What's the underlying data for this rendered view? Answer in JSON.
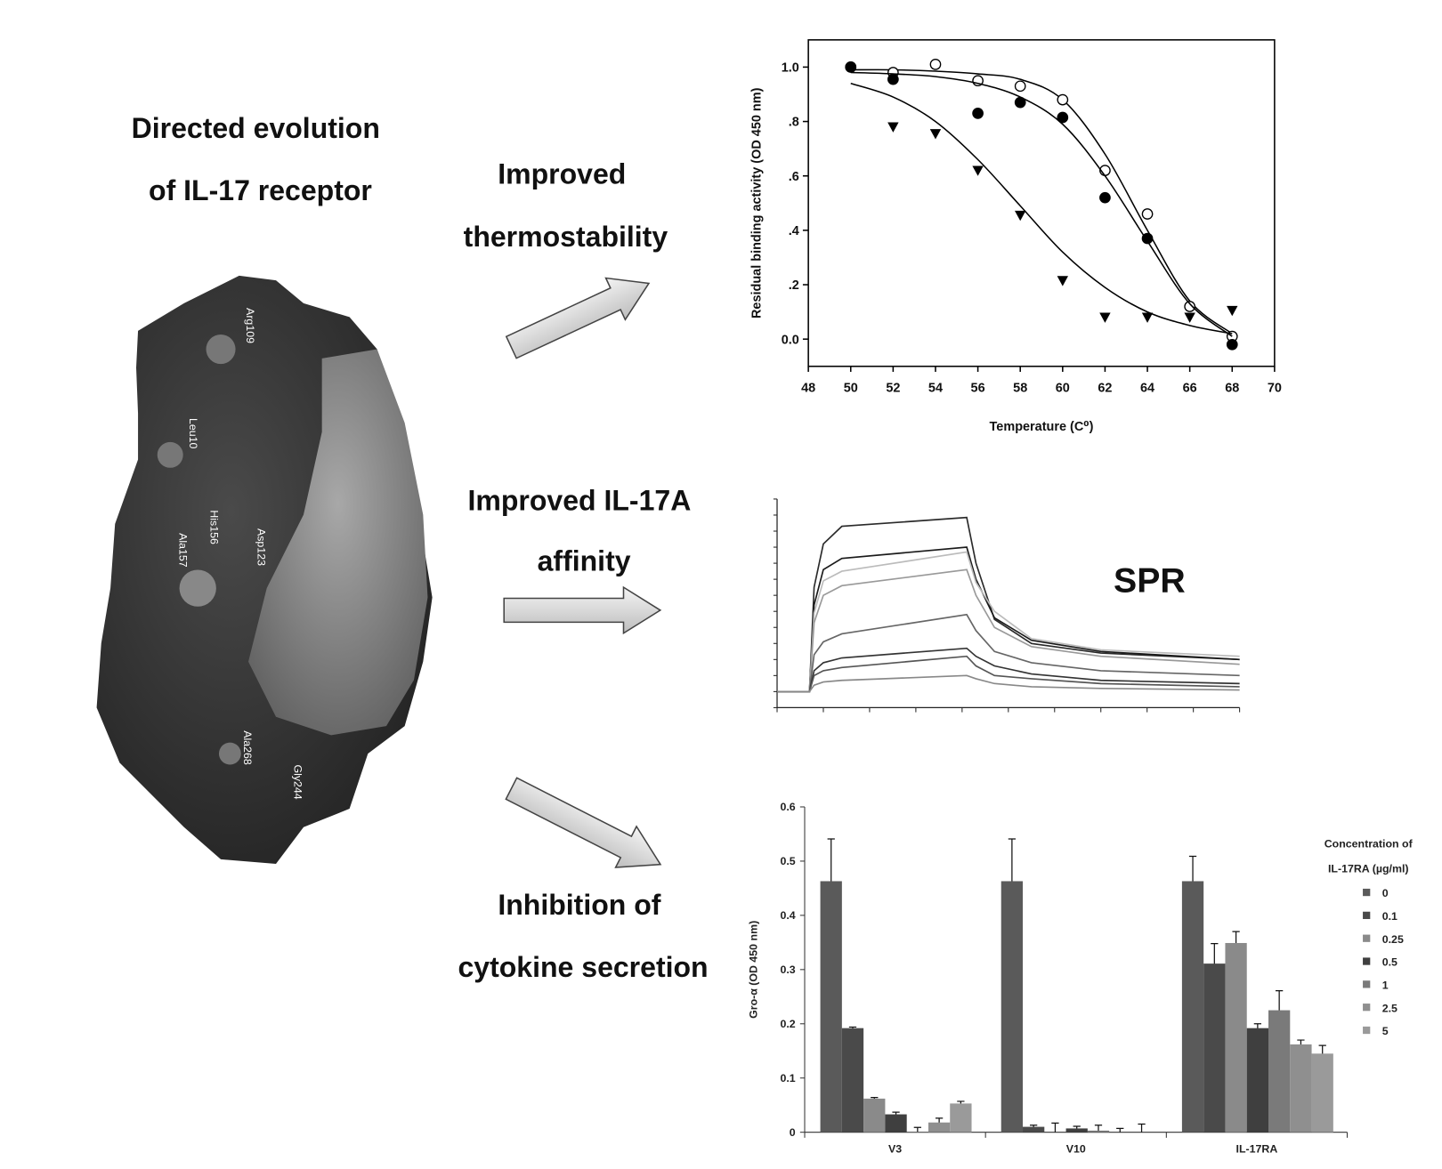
{
  "header": {
    "title_lines": [
      "Directed evolution",
      "of IL-17 receptor"
    ]
  },
  "structure": {
    "residues": [
      "Arg109",
      "Leu10",
      "His156",
      "Asp123",
      "Ala157",
      "Ala268",
      "Gly244"
    ]
  },
  "captions": [
    [
      "Improved",
      "thermostability"
    ],
    [
      "Improved IL-17A",
      "affinity"
    ],
    [
      "Inhibition of",
      "cytokine secretion"
    ]
  ],
  "chart_data": [
    {
      "type": "scatter",
      "xlabel": "Temperature (C⁰)",
      "ylabel": "Residual binding activity (OD 450 nm)",
      "x": [
        50,
        52,
        54,
        56,
        58,
        60,
        62,
        64,
        66,
        68
      ],
      "xlim": [
        48,
        70
      ],
      "xticks": [
        48,
        50,
        52,
        54,
        56,
        58,
        60,
        62,
        64,
        66,
        68,
        70
      ],
      "ylim": [
        -0.1,
        1.1
      ],
      "yticks": [
        {
          "value": 0,
          "label": "0.0"
        },
        {
          "value": 0.2,
          "label": ".2"
        },
        {
          "value": 0.4,
          "label": ".4"
        },
        {
          "value": 0.6,
          "label": ".6"
        },
        {
          "value": 0.8,
          "label": ".8"
        },
        {
          "value": 1,
          "label": "1.0"
        }
      ],
      "series": [
        {
          "marker": "open-circle",
          "color": "#000000",
          "values": [
            1.0,
            0.98,
            1.01,
            0.95,
            0.93,
            0.88,
            0.62,
            0.46,
            0.12,
            0.01
          ],
          "fit": [
            0.99,
            0.99,
            0.985,
            0.975,
            0.955,
            0.88,
            0.68,
            0.4,
            0.14,
            0.02
          ]
        },
        {
          "marker": "filled-circle",
          "color": "#000000",
          "values": [
            1.0,
            0.955,
            null,
            0.83,
            0.87,
            0.815,
            0.52,
            0.37,
            null,
            -0.02
          ],
          "fit": [
            0.98,
            0.975,
            0.965,
            0.94,
            0.89,
            0.79,
            0.6,
            0.36,
            0.13,
            0.01
          ]
        },
        {
          "marker": "triangle-down",
          "color": "#000000",
          "values": [
            null,
            0.78,
            0.755,
            0.62,
            0.455,
            0.215,
            0.08,
            0.08,
            0.08,
            0.105
          ],
          "fit": [
            0.94,
            0.89,
            0.8,
            0.66,
            0.49,
            0.32,
            0.19,
            0.1,
            0.05,
            0.02
          ]
        }
      ]
    },
    {
      "type": "line",
      "title": "SPR",
      "x": [
        0,
        7,
        8,
        10,
        14,
        41,
        43,
        47,
        55,
        70,
        100
      ],
      "xlim": [
        0,
        100
      ],
      "xticks": [
        0,
        10,
        20,
        30,
        40,
        50,
        60,
        70,
        80,
        90,
        100
      ],
      "ylim": [
        -1,
        12
      ],
      "yticks": [
        -1,
        0,
        1,
        2,
        3,
        4,
        5,
        6,
        7,
        8,
        9,
        10,
        11,
        12
      ],
      "series": [
        {
          "color": "#2a2a2a",
          "values": [
            0,
            0,
            6.5,
            9.2,
            10.3,
            10.85,
            8,
            4.5,
            3,
            2.4,
            2.0
          ]
        },
        {
          "color": "#1a1a1a",
          "values": [
            0,
            0,
            5.4,
            7.6,
            8.3,
            9.0,
            7,
            4.6,
            3.2,
            2.5,
            2.0
          ]
        },
        {
          "color": "#bbbbbb",
          "values": [
            0,
            0,
            4.9,
            6.9,
            7.5,
            8.7,
            6.8,
            5,
            3.3,
            2.6,
            2.2
          ]
        },
        {
          "color": "#999999",
          "values": [
            0,
            0,
            4.3,
            6,
            6.6,
            7.6,
            6,
            4,
            2.8,
            2.2,
            1.7
          ]
        },
        {
          "color": "#666666",
          "values": [
            0,
            0,
            2.3,
            3.1,
            3.6,
            4.8,
            3.8,
            2.5,
            1.8,
            1.3,
            1.0
          ]
        },
        {
          "color": "#333333",
          "values": [
            0,
            0,
            1.3,
            1.8,
            2.1,
            2.7,
            2.2,
            1.6,
            1.1,
            0.7,
            0.5
          ]
        },
        {
          "color": "#555555",
          "values": [
            0,
            0,
            1,
            1.3,
            1.5,
            2.2,
            1.6,
            1.0,
            0.8,
            0.5,
            0.3
          ]
        },
        {
          "color": "#888888",
          "values": [
            0,
            0,
            0.4,
            0.6,
            0.7,
            1.0,
            0.8,
            0.5,
            0.3,
            0.2,
            0.1
          ]
        }
      ]
    },
    {
      "type": "bar",
      "ylabel": "Gro-α (OD 450 nm)",
      "legend_title": [
        "Concentration of",
        "IL-17RA (µg/ml)"
      ],
      "categories": [
        "V3",
        "V10",
        "IL-17RA"
      ],
      "ylim": [
        0,
        0.6
      ],
      "yticks": [
        0,
        0.1,
        0.2,
        0.3,
        0.4,
        0.5,
        0.6
      ],
      "series": [
        {
          "name": "0",
          "color": "#5a5a5a",
          "values": [
            0.463,
            0.463,
            0.463
          ],
          "errors": [
            0.078,
            0.078,
            0.046
          ]
        },
        {
          "name": "0.1",
          "color": "#4a4a4a",
          "values": [
            0.192,
            0.01,
            0.311
          ],
          "errors": [
            0.002,
            0.003,
            0.037
          ]
        },
        {
          "name": "0.25",
          "color": "#8a8a8a",
          "values": [
            0.062,
            0.0,
            0.349
          ],
          "errors": [
            0.002,
            0.017,
            0.021
          ]
        },
        {
          "name": "0.5",
          "color": "#3f3f3f",
          "values": [
            0.033,
            0.007,
            0.192
          ],
          "errors": [
            0.004,
            0.004,
            0.008
          ]
        },
        {
          "name": "1",
          "color": "#7a7a7a",
          "values": [
            0.001,
            0.003,
            0.225
          ],
          "errors": [
            0.008,
            0.01,
            0.036
          ]
        },
        {
          "name": "2.5",
          "color": "#8f8f8f",
          "values": [
            0.018,
            0.0,
            0.162
          ],
          "errors": [
            0.008,
            0.007,
            0.008
          ]
        },
        {
          "name": "5",
          "color": "#9a9a9a",
          "values": [
            0.053,
            0.0,
            0.145
          ],
          "errors": [
            0.004,
            0.015,
            0.015
          ]
        }
      ]
    }
  ]
}
